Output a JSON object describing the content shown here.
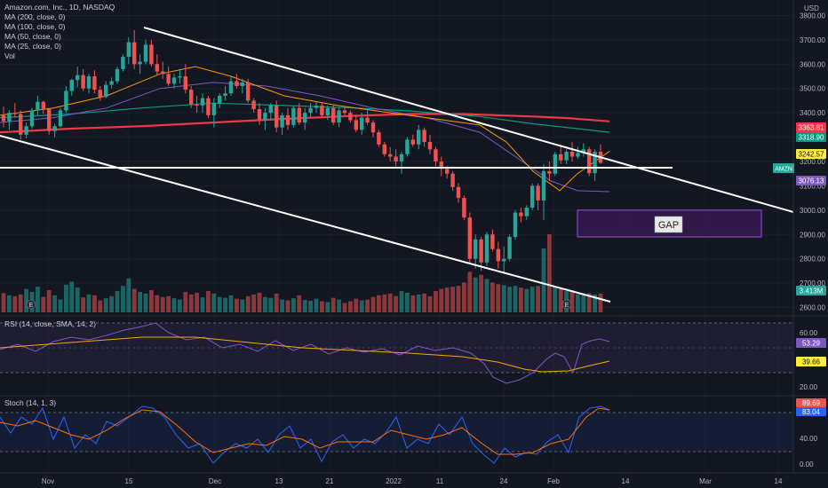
{
  "header": {
    "symbol_line": "Amazon.com, Inc., 1D, NASDAQ",
    "currency": "USD",
    "ma_lines": [
      "MA (200, close, 0)",
      "MA (100, close, 0)",
      "MA (50, close, 0)",
      "MA (25, close, 0)",
      "Vol"
    ]
  },
  "price_axis": {
    "ticks": [
      "3800.00",
      "3700.00",
      "3600.00",
      "3500.00",
      "3400.00",
      "3300.00",
      "3200.00",
      "3100.00",
      "3000.00",
      "2900.00",
      "2800.00",
      "2700.00",
      "2600.00"
    ]
  },
  "badges": {
    "ma200": "3363.81",
    "ma100": "3318.90",
    "ma25": "3242.57",
    "symbol": "AMZN",
    "ma50": "3076.13",
    "volume": "3.413M"
  },
  "annotations": {
    "gap": "GAP",
    "earnings_marker": "E"
  },
  "rsi": {
    "title": "RSI (14, close, SMA, 14, 2)",
    "value": "53.29",
    "sma_value": "39.66",
    "ticks": [
      "60.00",
      "40.00",
      "20.00"
    ]
  },
  "stoch": {
    "title": "Stoch (14, 1, 3)",
    "k_value": "89.69",
    "d_value": "83.04",
    "ticks": [
      "40.00",
      "0.00"
    ]
  },
  "time_axis": {
    "labels": [
      "Nov",
      "15",
      "Dec",
      "13",
      "21",
      "2022",
      "11",
      "24",
      "Feb",
      "14",
      "Mar",
      "14"
    ]
  },
  "colors": {
    "background": "#131722",
    "up": "#26a69a",
    "down": "#ef5350",
    "ma200": "#f23645",
    "ma100": "#089981",
    "ma50": "#7e57c2",
    "ma25": "#ff9800",
    "trendline": "#ffffff",
    "gap_zone": "#4a1a6b",
    "rsi_line": "#7e57c2",
    "rsi_sma": "#f7a600",
    "stoch_k": "#2962ff",
    "stoch_d": "#ff6d00"
  },
  "chart_data": {
    "type": "candlestick",
    "title": "Amazon.com, Inc., 1D, NASDAQ",
    "ylim": [
      2580,
      3820
    ],
    "candles": [
      [
        3390,
        3425,
        3340,
        3365
      ],
      [
        3365,
        3410,
        3330,
        3400
      ],
      [
        3400,
        3440,
        3380,
        3395
      ],
      [
        3395,
        3410,
        3290,
        3310
      ],
      [
        3310,
        3360,
        3295,
        3345
      ],
      [
        3345,
        3420,
        3335,
        3410
      ],
      [
        3410,
        3470,
        3390,
        3445
      ],
      [
        3445,
        3450,
        3395,
        3415
      ],
      [
        3415,
        3420,
        3310,
        3325
      ],
      [
        3325,
        3355,
        3300,
        3345
      ],
      [
        3345,
        3420,
        3340,
        3410
      ],
      [
        3410,
        3510,
        3400,
        3490
      ],
      [
        3490,
        3540,
        3470,
        3535
      ],
      [
        3535,
        3590,
        3505,
        3555
      ],
      [
        3555,
        3580,
        3490,
        3500
      ],
      [
        3500,
        3560,
        3480,
        3550
      ],
      [
        3550,
        3575,
        3480,
        3495
      ],
      [
        3495,
        3510,
        3450,
        3465
      ],
      [
        3465,
        3530,
        3460,
        3515
      ],
      [
        3515,
        3545,
        3500,
        3530
      ],
      [
        3530,
        3590,
        3520,
        3580
      ],
      [
        3580,
        3640,
        3570,
        3630
      ],
      [
        3630,
        3710,
        3600,
        3690
      ],
      [
        3690,
        3740,
        3580,
        3600
      ],
      [
        3600,
        3640,
        3560,
        3610
      ],
      [
        3610,
        3700,
        3600,
        3680
      ],
      [
        3680,
        3700,
        3590,
        3600
      ],
      [
        3600,
        3640,
        3555,
        3570
      ],
      [
        3570,
        3610,
        3540,
        3560
      ],
      [
        3560,
        3590,
        3510,
        3520
      ],
      [
        3520,
        3560,
        3500,
        3545
      ],
      [
        3545,
        3580,
        3520,
        3550
      ],
      [
        3550,
        3600,
        3480,
        3495
      ],
      [
        3495,
        3510,
        3420,
        3435
      ],
      [
        3435,
        3470,
        3400,
        3430
      ],
      [
        3430,
        3480,
        3400,
        3460
      ],
      [
        3460,
        3470,
        3380,
        3390
      ],
      [
        3390,
        3460,
        3340,
        3440
      ],
      [
        3440,
        3480,
        3420,
        3470
      ],
      [
        3470,
        3510,
        3450,
        3480
      ],
      [
        3480,
        3550,
        3470,
        3530
      ],
      [
        3530,
        3560,
        3500,
        3510
      ],
      [
        3510,
        3540,
        3480,
        3525
      ],
      [
        3525,
        3540,
        3440,
        3450
      ],
      [
        3450,
        3460,
        3400,
        3415
      ],
      [
        3415,
        3440,
        3350,
        3370
      ],
      [
        3370,
        3420,
        3330,
        3400
      ],
      [
        3400,
        3440,
        3370,
        3430
      ],
      [
        3430,
        3450,
        3320,
        3340
      ],
      [
        3340,
        3400,
        3310,
        3390
      ],
      [
        3390,
        3420,
        3330,
        3350
      ],
      [
        3350,
        3430,
        3340,
        3420
      ],
      [
        3420,
        3440,
        3350,
        3360
      ],
      [
        3360,
        3420,
        3330,
        3400
      ],
      [
        3400,
        3440,
        3380,
        3420
      ],
      [
        3420,
        3445,
        3400,
        3430
      ],
      [
        3430,
        3440,
        3380,
        3390
      ],
      [
        3390,
        3430,
        3370,
        3420
      ],
      [
        3420,
        3435,
        3350,
        3360
      ],
      [
        3360,
        3420,
        3340,
        3410
      ],
      [
        3410,
        3420,
        3390,
        3400
      ],
      [
        3400,
        3410,
        3360,
        3370
      ],
      [
        3370,
        3390,
        3320,
        3330
      ],
      [
        3330,
        3400,
        3310,
        3380
      ],
      [
        3380,
        3410,
        3350,
        3360
      ],
      [
        3360,
        3370,
        3300,
        3320
      ],
      [
        3320,
        3330,
        3260,
        3270
      ],
      [
        3270,
        3280,
        3220,
        3230
      ],
      [
        3230,
        3260,
        3200,
        3220
      ],
      [
        3220,
        3250,
        3180,
        3200
      ],
      [
        3200,
        3240,
        3150,
        3230
      ],
      [
        3230,
        3300,
        3220,
        3290
      ],
      [
        3290,
        3310,
        3260,
        3270
      ],
      [
        3270,
        3350,
        3250,
        3330
      ],
      [
        3330,
        3340,
        3260,
        3280
      ],
      [
        3280,
        3310,
        3230,
        3250
      ],
      [
        3250,
        3260,
        3180,
        3200
      ],
      [
        3200,
        3220,
        3140,
        3170
      ],
      [
        3170,
        3180,
        3130,
        3150
      ],
      [
        3150,
        3160,
        3080,
        3095
      ],
      [
        3095,
        3110,
        3030,
        3050
      ],
      [
        3050,
        3060,
        2960,
        2970
      ],
      [
        2970,
        2990,
        2780,
        2800
      ],
      [
        2800,
        2900,
        2760,
        2880
      ],
      [
        2880,
        2890,
        2750,
        2785
      ],
      [
        2785,
        2910,
        2770,
        2900
      ],
      [
        2900,
        2920,
        2830,
        2840
      ],
      [
        2840,
        2870,
        2760,
        2790
      ],
      [
        2790,
        2850,
        2740,
        2800
      ],
      [
        2800,
        2900,
        2790,
        2890
      ],
      [
        2890,
        3000,
        2880,
        2990
      ],
      [
        2990,
        3010,
        2950,
        2975
      ],
      [
        2975,
        3020,
        2960,
        3010
      ],
      [
        3010,
        3110,
        3000,
        3100
      ],
      [
        3100,
        3110,
        3000,
        3040
      ],
      [
        3040,
        3190,
        2960,
        3160
      ],
      [
        3160,
        3200,
        3120,
        3150
      ],
      [
        3150,
        3240,
        3140,
        3230
      ],
      [
        3230,
        3270,
        3190,
        3205
      ],
      [
        3205,
        3250,
        3190,
        3240
      ],
      [
        3240,
        3280,
        3200,
        3220
      ],
      [
        3220,
        3260,
        3210,
        3235
      ],
      [
        3235,
        3275,
        3220,
        3250
      ],
      [
        3250,
        3260,
        3140,
        3152
      ],
      [
        3152,
        3250,
        3120,
        3240
      ],
      [
        3240,
        3270,
        3190,
        3195
      ]
    ],
    "volume_levels": [
      0.45,
      0.4,
      0.38,
      0.42,
      0.55,
      0.48,
      0.6,
      0.36,
      0.52,
      0.4,
      0.3,
      0.65,
      0.72,
      0.58,
      0.35,
      0.42,
      0.4,
      0.28,
      0.33,
      0.38,
      0.5,
      0.62,
      0.8,
      0.55,
      0.48,
      0.44,
      0.52,
      0.4,
      0.36,
      0.38,
      0.33,
      0.3,
      0.48,
      0.42,
      0.46,
      0.35,
      0.5,
      0.44,
      0.36,
      0.34,
      0.4,
      0.32,
      0.3,
      0.38,
      0.42,
      0.46,
      0.36,
      0.34,
      0.44,
      0.3,
      0.28,
      0.33,
      0.4,
      0.29,
      0.27,
      0.32,
      0.26,
      0.24,
      0.34,
      0.3,
      0.22,
      0.26,
      0.32,
      0.28,
      0.3,
      0.36,
      0.4,
      0.42,
      0.44,
      0.38,
      0.5,
      0.46,
      0.4,
      0.42,
      0.44,
      0.38,
      0.5,
      0.55,
      0.58,
      0.6,
      0.62,
      0.7,
      0.95,
      0.82,
      0.88,
      0.78,
      0.7,
      0.66,
      0.64,
      0.6,
      0.62,
      0.58,
      0.55,
      0.6,
      0.62,
      1.0,
      1.0,
      0.6,
      0.55,
      0.5,
      0.48,
      0.42,
      0.4,
      0.45,
      0.42,
      0.44
    ]
  }
}
